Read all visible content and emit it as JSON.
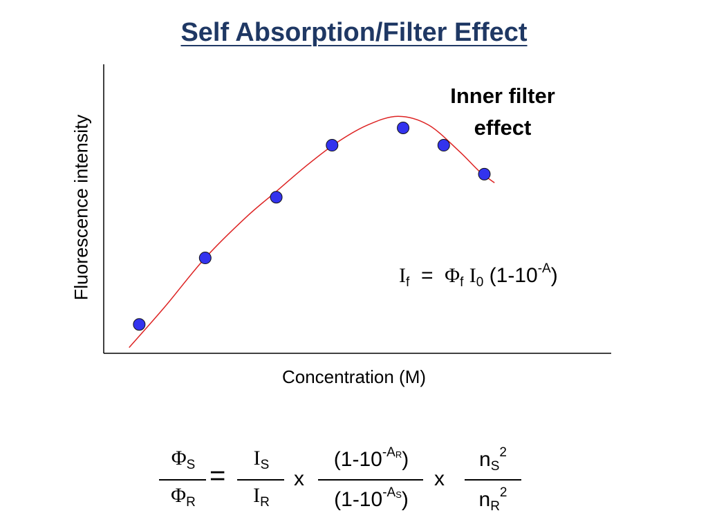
{
  "title": "Self Absorption/Filter Effect",
  "annotation_line1": "Inner filter",
  "annotation_line2": "effect",
  "equation_intensity": {
    "lhs": "I",
    "lhs_sub": "f",
    "equals": "=",
    "phi": "Φ",
    "phi_sub": "f",
    "i0": "I",
    "i0_sub": "0",
    "paren_open": "(1-10",
    "exp": "-A",
    "paren_close": ")"
  },
  "equation_quantum_yield": {
    "phi_s": "Φ",
    "phi_s_sub": "S",
    "phi_r": "Φ",
    "phi_r_sub": "R",
    "equals": "=",
    "i_s": "I",
    "i_s_sub": "S",
    "i_r": "I",
    "i_r_sub": "R",
    "times": "x",
    "num_a": "(1-10",
    "num_a_exp": "-A",
    "num_a_exp_sub": "R",
    "num_a_close": ")",
    "den_a": "(1-10",
    "den_a_exp": "-A",
    "den_a_exp_sub": "S",
    "den_a_close": ")",
    "n_s": "n",
    "n_s_sub": "S",
    "n_s_sup": "2",
    "n_r": "n",
    "n_r_sub": "R",
    "n_r_sup": "2"
  },
  "chart_data": {
    "type": "scatter",
    "title": "",
    "xlabel": "Concentration (M)",
    "ylabel": "Fluorescence intensity",
    "xlim": [
      0,
      10
    ],
    "ylim": [
      0,
      10
    ],
    "grid": false,
    "points": [
      {
        "x": 0.7,
        "y": 1.0
      },
      {
        "x": 2.0,
        "y": 3.3
      },
      {
        "x": 3.4,
        "y": 5.4
      },
      {
        "x": 4.5,
        "y": 7.2
      },
      {
        "x": 5.9,
        "y": 7.8
      },
      {
        "x": 6.7,
        "y": 7.2
      },
      {
        "x": 7.5,
        "y": 6.2
      }
    ],
    "fit_curve": [
      {
        "x": 0.5,
        "y": 0.2
      },
      {
        "x": 1.2,
        "y": 1.6
      },
      {
        "x": 2.0,
        "y": 3.3
      },
      {
        "x": 2.8,
        "y": 4.7
      },
      {
        "x": 3.4,
        "y": 5.6
      },
      {
        "x": 4.0,
        "y": 6.5
      },
      {
        "x": 4.6,
        "y": 7.3
      },
      {
        "x": 5.2,
        "y": 7.9
      },
      {
        "x": 5.8,
        "y": 8.2
      },
      {
        "x": 6.4,
        "y": 7.9
      },
      {
        "x": 7.0,
        "y": 7.0
      },
      {
        "x": 7.4,
        "y": 6.3
      },
      {
        "x": 7.7,
        "y": 5.9
      }
    ],
    "point_color": "#3333ee",
    "curve_color": "#dd2222"
  }
}
